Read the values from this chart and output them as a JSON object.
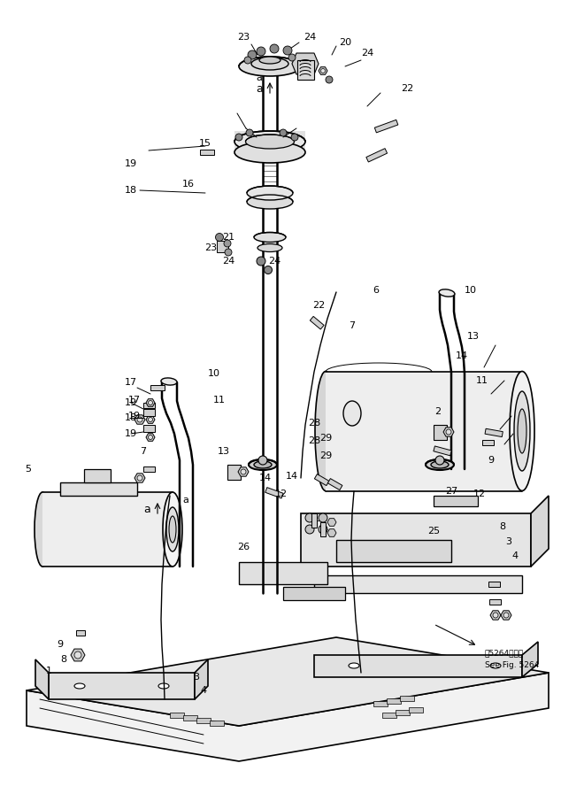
{
  "bg_color": "#ffffff",
  "line_color": "#000000",
  "figsize": [
    6.34,
    8.97
  ],
  "dpi": 100,
  "note_text_jp": "围5264図参用",
  "note_text_en": "See Fig. 5264",
  "title_note": "围5264図参用"
}
